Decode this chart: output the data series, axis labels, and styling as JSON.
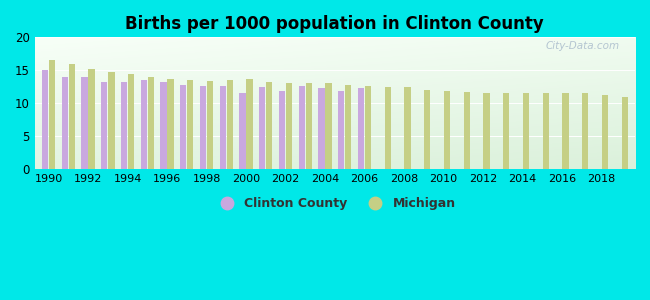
{
  "title": "Births per 1000 population in Clinton County",
  "background_color": "#00e8e8",
  "years": [
    1990,
    1991,
    1992,
    1993,
    1994,
    1995,
    1996,
    1997,
    1998,
    1999,
    2000,
    2001,
    2002,
    2003,
    2004,
    2005,
    2006,
    2007,
    2008,
    2009,
    2010,
    2011,
    2012,
    2013,
    2014,
    2015,
    2016,
    2017,
    2018,
    2019
  ],
  "clinton_county": [
    15.0,
    14.0,
    13.9,
    13.2,
    13.2,
    13.5,
    13.2,
    12.7,
    12.6,
    12.6,
    11.5,
    12.5,
    11.8,
    12.6,
    12.3,
    11.8,
    12.3,
    null,
    null,
    null,
    null,
    null,
    null,
    null,
    null,
    null,
    null,
    null,
    null,
    null
  ],
  "michigan": [
    16.5,
    16.0,
    15.2,
    14.8,
    14.4,
    13.9,
    13.6,
    13.5,
    13.4,
    13.5,
    13.6,
    13.2,
    13.0,
    13.0,
    13.1,
    12.7,
    12.6,
    12.5,
    12.4,
    12.0,
    11.8,
    11.7,
    11.6,
    11.6,
    11.6,
    11.6,
    11.5,
    11.5,
    11.3,
    11.0
  ],
  "clinton_color": "#c9a8df",
  "michigan_color": "#c5cf85",
  "ylim": [
    0,
    20
  ],
  "yticks": [
    0,
    5,
    10,
    15,
    20
  ],
  "bar_width": 0.32,
  "watermark": "City-Data.com",
  "legend_clinton": "Clinton County",
  "legend_michigan": "Michigan"
}
